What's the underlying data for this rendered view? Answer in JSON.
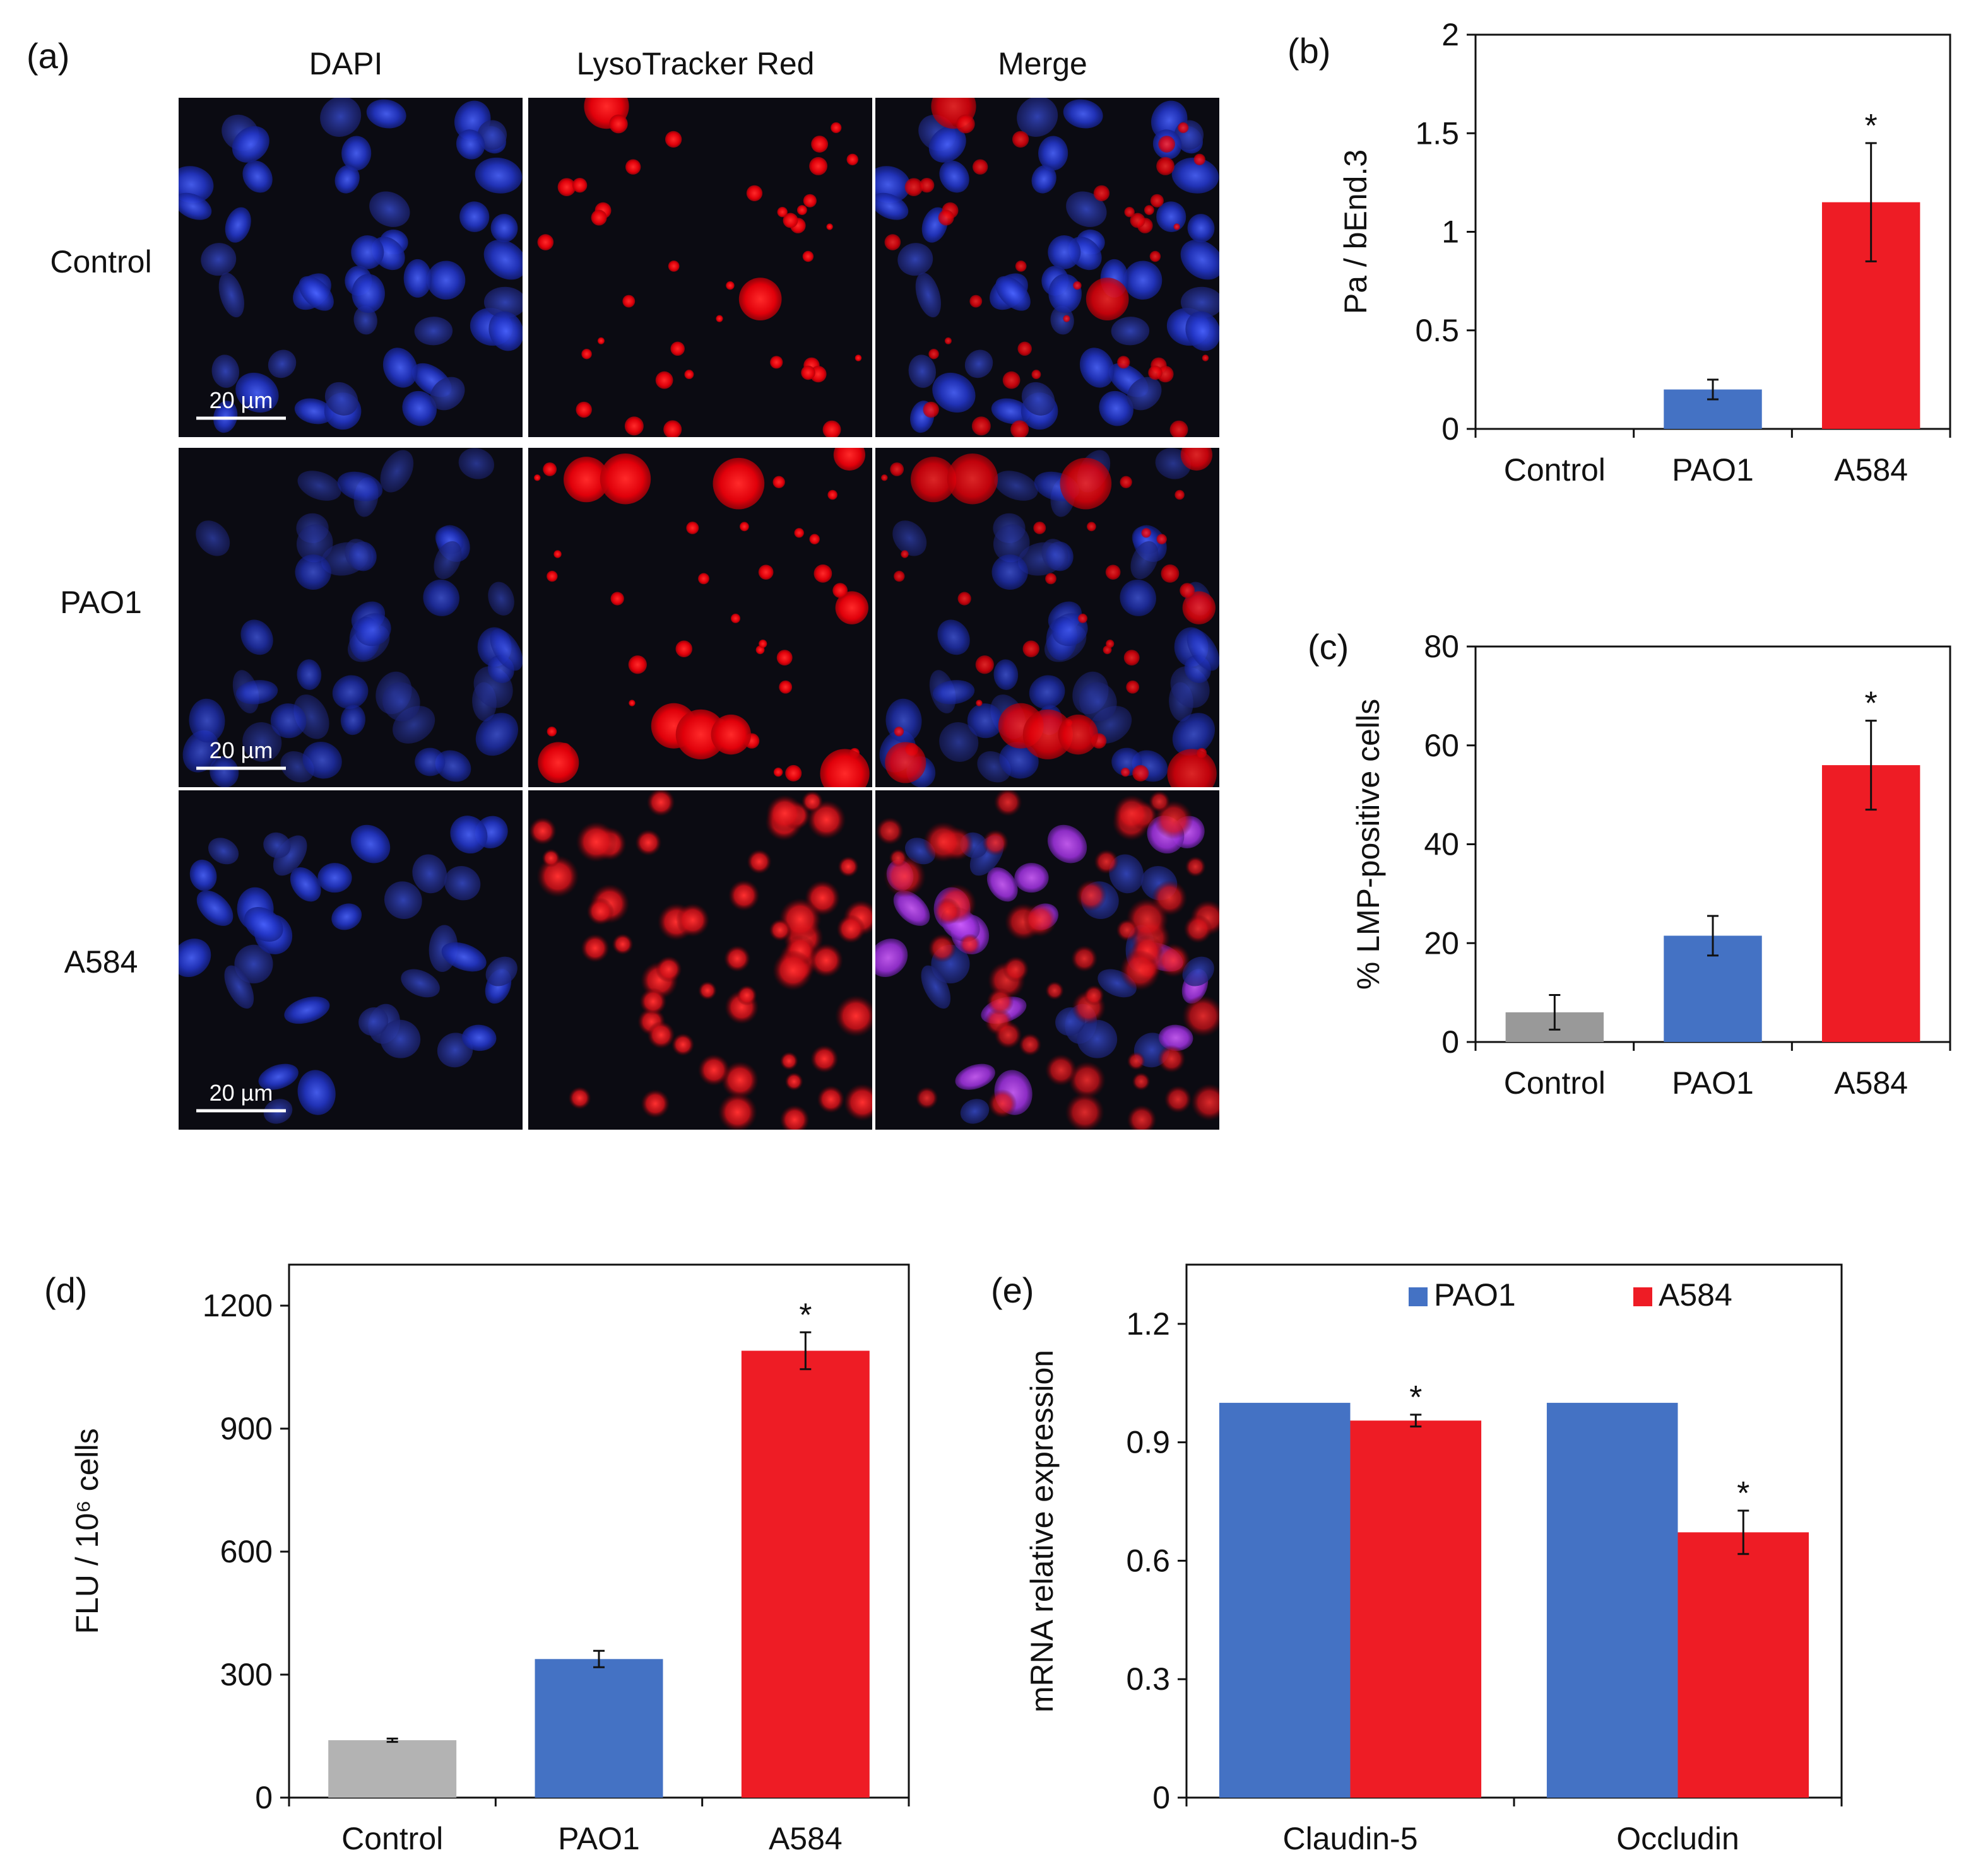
{
  "panel_a": {
    "label": "(a)",
    "columns": [
      "DAPI",
      "LysoTracker Red",
      "Merge"
    ],
    "rows": [
      "Control",
      "PAO1",
      "A584"
    ],
    "scale_bar": "20 µm",
    "colors": {
      "dapi": "#2a3fd8",
      "lyso": "#ff1a1a",
      "background": "#0b0b12"
    }
  },
  "chart_data": [
    {
      "id": "b",
      "panel_label": "(b)",
      "type": "bar",
      "categories": [
        "Control",
        "PAO1",
        "A584"
      ],
      "values": [
        0,
        0.2,
        1.15
      ],
      "errors": [
        0,
        0.05,
        0.3
      ],
      "colors": [
        "#999999",
        "#4472c4",
        "#ee1c25"
      ],
      "significance": [
        "",
        "",
        "*"
      ],
      "ylabel": "Pa / bEnd.3",
      "ylim": [
        0,
        2
      ],
      "yticks": [
        0,
        0.5,
        1,
        1.5,
        2
      ],
      "ytick_labels": [
        "0",
        "0.5",
        "1",
        "1.5",
        "2"
      ]
    },
    {
      "id": "c",
      "panel_label": "(c)",
      "type": "bar",
      "categories": [
        "Control",
        "PAO1",
        "A584"
      ],
      "values": [
        6,
        21.5,
        56
      ],
      "errors": [
        3.5,
        4,
        9
      ],
      "colors": [
        "#999999",
        "#4472c4",
        "#ee1c25"
      ],
      "significance": [
        "",
        "",
        "*"
      ],
      "ylabel": "% LMP-positive cells",
      "ylim": [
        0,
        80
      ],
      "yticks": [
        0,
        20,
        40,
        60,
        80
      ],
      "ytick_labels": [
        "0",
        "20",
        "40",
        "60",
        "80"
      ]
    },
    {
      "id": "d",
      "panel_label": "(d)",
      "type": "bar",
      "categories": [
        "Control",
        "PAO1",
        "A584"
      ],
      "values": [
        140,
        338,
        1090
      ],
      "errors": [
        4,
        20,
        45
      ],
      "colors": [
        "#b3b3b3",
        "#4472c4",
        "#ee1c25"
      ],
      "significance": [
        "",
        "",
        "*"
      ],
      "ylabel": "FLU / 10⁶ cells",
      "ylim": [
        0,
        1300
      ],
      "yticks": [
        0,
        300,
        600,
        900,
        1200
      ],
      "ytick_labels": [
        "0",
        "300",
        "600",
        "900",
        "1200"
      ]
    },
    {
      "id": "e",
      "panel_label": "(e)",
      "type": "bar",
      "categories": [
        "Claudin-5",
        "Occludin"
      ],
      "series": [
        {
          "name": "PAO1",
          "values": [
            1.0,
            1.0
          ],
          "errors": [
            0,
            0
          ],
          "color": "#4472c4",
          "significance": [
            "",
            ""
          ]
        },
        {
          "name": "A584",
          "values": [
            0.955,
            0.672
          ],
          "errors": [
            0.015,
            0.055
          ],
          "color": "#ee1c25",
          "significance": [
            "*",
            "*"
          ]
        }
      ],
      "ylabel": "mRNA relative expression",
      "ylim": [
        0,
        1.35
      ],
      "yticks": [
        0,
        0.3,
        0.6,
        0.9,
        1.2
      ],
      "ytick_labels": [
        "0",
        "0.3",
        "0.6",
        "0.9",
        "1.2"
      ],
      "legend_position": "top"
    }
  ]
}
